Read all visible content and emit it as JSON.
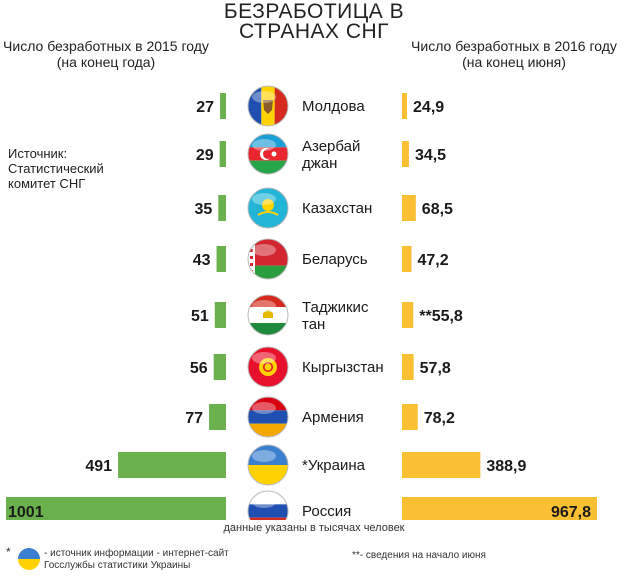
{
  "title_line1": "БЕЗРАБОТИЦА В",
  "title_line2": "СТРАНАХ СНГ",
  "left_header": "Число безработных в 2015 году (на конец года)",
  "right_header": "Число безработных в 2016 году (на конец июня)",
  "source": "Источник: Статистический комитет СНГ",
  "units_note": "данные указаны в тысячах человек",
  "footnote_star_mark": "*",
  "footnote_star": "- источник информации - интернет-сайт Госслужбы статистики Украины",
  "footnote_double": "**- сведения на начало июня",
  "colors": {
    "left_bar": "#6ab04c",
    "right_bar": "#fbbf33"
  },
  "chart_data": {
    "type": "bar",
    "categories": [
      "Молдова",
      "Азербайджан",
      "Казахстан",
      "Беларусь",
      "Таджикистан",
      "Кыргызстан",
      "Армения",
      "*Украина",
      "Россия"
    ],
    "category_labels": [
      [
        "Молдова"
      ],
      [
        "Азербай",
        "джан"
      ],
      [
        "Казахстан"
      ],
      [
        "Беларусь"
      ],
      [
        "Таджикис",
        "тан"
      ],
      [
        "Кыргызстан"
      ],
      [
        "Армения"
      ],
      [
        "*Украина"
      ],
      [
        "Россия"
      ]
    ],
    "flag_icons": [
      "moldova-flag-icon",
      "azerbaijan-flag-icon",
      "kazakhstan-flag-icon",
      "belarus-flag-icon",
      "tajikistan-flag-icon",
      "kyrgyzstan-flag-icon",
      "armenia-flag-icon",
      "ukraine-flag-icon",
      "russia-flag-icon"
    ],
    "series": [
      {
        "values": [
          27,
          29,
          35,
          43,
          51,
          56,
          77,
          491,
          1001
        ],
        "labels": [
          "27",
          "29",
          "35",
          "43",
          "51",
          "56",
          "77",
          "491",
          "1001"
        ]
      },
      {
        "values": [
          24.9,
          34.5,
          68.5,
          47.2,
          55.8,
          57.8,
          78.2,
          388.9,
          967.8
        ],
        "labels": [
          "24,9",
          "34,5",
          "68,5",
          "47,2",
          "**55,8",
          "57,8",
          "78,2",
          "388,9",
          "967,8"
        ]
      }
    ]
  }
}
